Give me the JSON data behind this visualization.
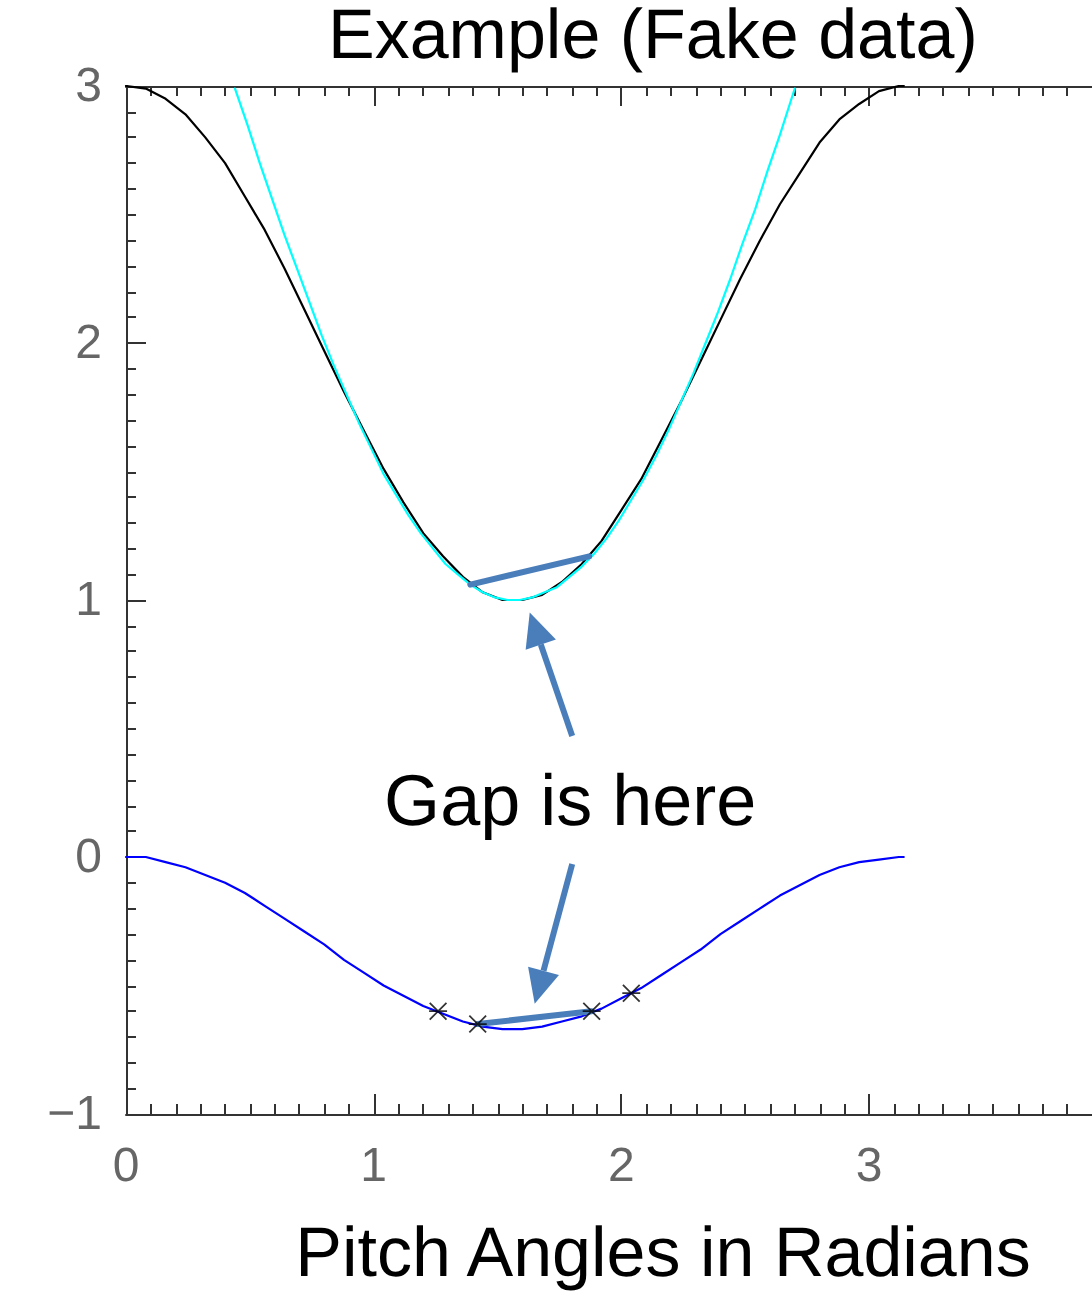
{
  "chart_data": {
    "type": "line",
    "title": "Example (Fake data)",
    "xlabel": "Pitch Angles in Radians",
    "xlim": [
      0,
      3.9
    ],
    "xticks": [
      0,
      1,
      2,
      3
    ],
    "ylim": [
      -1,
      3
    ],
    "yticks": [
      -1,
      0,
      1,
      2,
      3
    ],
    "annotations": [
      "Gap is here"
    ],
    "series": [
      {
        "color": "#000000",
        "x": [
          0,
          0.08,
          0.16,
          0.24,
          0.32,
          0.4,
          0.48,
          0.56,
          0.64,
          0.72,
          0.8,
          0.88,
          0.96,
          1.04,
          1.12,
          1.2,
          1.28,
          1.36,
          1.44,
          1.52,
          1.6,
          1.68,
          1.76,
          1.84,
          1.92,
          2,
          2.08,
          2.16,
          2.24,
          2.32,
          2.4,
          2.48,
          2.56,
          2.64,
          2.72,
          2.8,
          2.88,
          2.96,
          3.04,
          3.12,
          3.14
        ],
        "values": [
          3,
          2.99,
          2.95,
          2.89,
          2.8,
          2.7,
          2.57,
          2.44,
          2.29,
          2.13,
          1.97,
          1.81,
          1.66,
          1.51,
          1.38,
          1.26,
          1.17,
          1.09,
          1.03,
          1,
          1,
          1.02,
          1.07,
          1.14,
          1.23,
          1.35,
          1.47,
          1.62,
          1.77,
          1.93,
          2.09,
          2.25,
          2.4,
          2.54,
          2.66,
          2.78,
          2.87,
          2.93,
          2.98,
          3,
          3
        ]
      },
      {
        "color": "#00ffff",
        "x": [
          0.44,
          0.49,
          0.54,
          0.59,
          0.64,
          0.69,
          0.74,
          0.79,
          0.84,
          0.89,
          0.94,
          0.99,
          1.04,
          1.09,
          1.14,
          1.19,
          1.24,
          1.29,
          1.34,
          1.39,
          1.44,
          1.49,
          1.54,
          1.59,
          1.64,
          1.69,
          1.74,
          1.79,
          1.84,
          1.89,
          1.94,
          1.99,
          2.04,
          2.09,
          2.14,
          2.19,
          2.24,
          2.29,
          2.34,
          2.39,
          2.44,
          2.49,
          2.54,
          2.59,
          2.64,
          2.69,
          2.7
        ],
        "values": [
          2.99,
          2.85,
          2.7,
          2.56,
          2.42,
          2.29,
          2.16,
          2.03,
          1.91,
          1.8,
          1.69,
          1.59,
          1.49,
          1.41,
          1.33,
          1.26,
          1.2,
          1.14,
          1.1,
          1.06,
          1.03,
          1.01,
          1,
          1,
          1.01,
          1.03,
          1.05,
          1.09,
          1.13,
          1.18,
          1.24,
          1.31,
          1.39,
          1.47,
          1.56,
          1.66,
          1.77,
          1.88,
          2,
          2.12,
          2.25,
          2.39,
          2.52,
          2.67,
          2.81,
          2.96,
          2.99
        ]
      },
      {
        "color": "#0000ff",
        "x": [
          0,
          0.08,
          0.16,
          0.24,
          0.32,
          0.4,
          0.48,
          0.56,
          0.64,
          0.72,
          0.8,
          0.88,
          0.96,
          1.04,
          1.12,
          1.2,
          1.28,
          1.36,
          1.44,
          1.52,
          1.6,
          1.68,
          1.76,
          1.84,
          1.92,
          2,
          2.08,
          2.16,
          2.24,
          2.32,
          2.4,
          2.48,
          2.56,
          2.64,
          2.72,
          2.8,
          2.88,
          2.96,
          3.04,
          3.12,
          3.14
        ],
        "values": [
          0,
          0,
          -0.02,
          -0.04,
          -0.07,
          -0.1,
          -0.14,
          -0.19,
          -0.24,
          -0.29,
          -0.34,
          -0.4,
          -0.45,
          -0.5,
          -0.54,
          -0.58,
          -0.61,
          -0.64,
          -0.66,
          -0.67,
          -0.67,
          -0.66,
          -0.64,
          -0.62,
          -0.59,
          -0.55,
          -0.51,
          -0.46,
          -0.41,
          -0.36,
          -0.3,
          -0.25,
          -0.2,
          -0.15,
          -0.11,
          -0.07,
          -0.04,
          -0.02,
          -0.01,
          0,
          0
        ]
      },
      {
        "color": "#4a7ebb",
        "x": [
          1.39,
          1.87
        ],
        "values": [
          1.06,
          1.17
        ]
      },
      {
        "color": "#4a7ebb",
        "x": [
          1.42,
          1.88
        ],
        "values": [
          -0.65,
          -0.6
        ]
      },
      {
        "type": "scatter",
        "marker": "cross",
        "color": "#000000",
        "x": [
          1.26,
          1.42,
          1.88,
          2.04
        ],
        "values": [
          -0.6,
          -0.65,
          -0.6,
          -0.53
        ]
      }
    ]
  }
}
